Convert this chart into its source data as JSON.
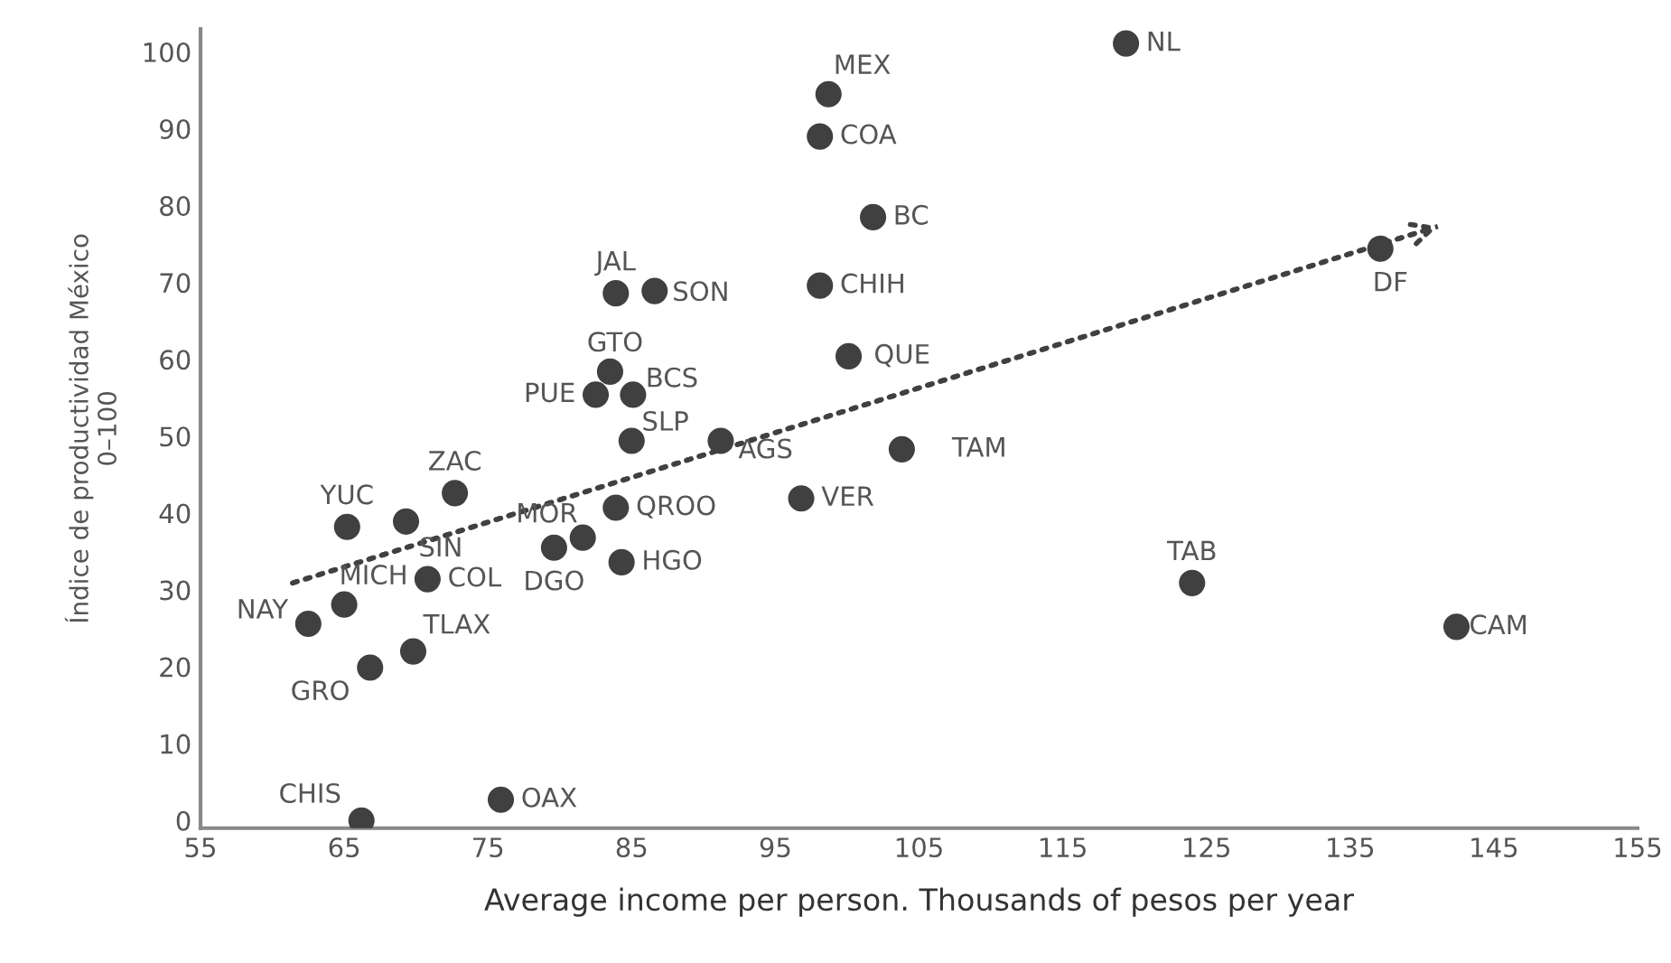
{
  "chart_data": {
    "type": "scatter",
    "xlabel": "Average income per person. Thousands of pesos per year",
    "ylabel": "Índice de productividad México\n0–100",
    "xlim": [
      55,
      155
    ],
    "xticks": [
      55,
      65,
      75,
      85,
      95,
      105,
      115,
      125,
      135,
      145,
      155
    ],
    "ylim": [
      -1,
      103
    ],
    "yticks": [
      0,
      10,
      20,
      30,
      40,
      50,
      60,
      70,
      80,
      90,
      100
    ],
    "grid": false,
    "marker": "circle",
    "series": [
      {
        "color": "#404040",
        "x": [
          66.2,
          75.9,
          62.5,
          66.8,
          69.8,
          65.0,
          70.8,
          65.2,
          69.3,
          72.7,
          79.6,
          81.6,
          83.9,
          84.3,
          85.0,
          82.5,
          83.5,
          85.1,
          83.9,
          86.6,
          91.2,
          96.8,
          103.8,
          100.1,
          98.1,
          101.8,
          98.1,
          98.7,
          119.4,
          137.1,
          124.0,
          142.4
        ],
        "values": [
          0,
          2.7,
          25.6,
          19.9,
          22.0,
          28.1,
          31.4,
          38.2,
          38.9,
          42.6,
          35.5,
          36.8,
          40.7,
          33.6,
          49.4,
          55.4,
          58.4,
          55.4,
          68.6,
          68.9,
          49.4,
          41.9,
          48.3,
          60.4,
          69.6,
          78.5,
          89.0,
          94.5,
          101.1,
          74.4,
          30.9,
          25.2
        ]
      },
      {
        "type": "line",
        "color": "#404040",
        "line_style": "dotted",
        "marker": "none",
        "x": [
          61.4,
          141.1
        ],
        "values": [
          30.9,
          77.3
        ]
      }
    ],
    "annotations": [
      {
        "text": "CHIS",
        "x": 66.2,
        "y": 0
      },
      {
        "text": "OAX",
        "x": 75.9,
        "y": 2.7
      },
      {
        "text": "NAY",
        "x": 62.5,
        "y": 25.6
      },
      {
        "text": "GRO",
        "x": 66.8,
        "y": 19.9
      },
      {
        "text": "TLAX",
        "x": 69.8,
        "y": 22.0
      },
      {
        "text": "MICH",
        "x": 65.0,
        "y": 28.1
      },
      {
        "text": "COL",
        "x": 70.8,
        "y": 31.4
      },
      {
        "text": "YUC",
        "x": 65.2,
        "y": 38.2
      },
      {
        "text": "SIN",
        "x": 69.3,
        "y": 38.9
      },
      {
        "text": "ZAC",
        "x": 72.7,
        "y": 42.6
      },
      {
        "text": "DGO",
        "x": 79.6,
        "y": 35.5
      },
      {
        "text": "MOR",
        "x": 81.6,
        "y": 36.8
      },
      {
        "text": "QROO",
        "x": 83.9,
        "y": 40.7
      },
      {
        "text": "HGO",
        "x": 84.3,
        "y": 33.6
      },
      {
        "text": "SLP",
        "x": 85.0,
        "y": 49.4
      },
      {
        "text": "PUE",
        "x": 82.5,
        "y": 55.4
      },
      {
        "text": "GTO",
        "x": 83.5,
        "y": 58.4
      },
      {
        "text": "BCS",
        "x": 85.1,
        "y": 55.4
      },
      {
        "text": "JAL",
        "x": 83.9,
        "y": 68.6
      },
      {
        "text": "SON",
        "x": 86.6,
        "y": 68.9
      },
      {
        "text": "AGS",
        "x": 91.2,
        "y": 49.4
      },
      {
        "text": "VER",
        "x": 96.8,
        "y": 41.9
      },
      {
        "text": "TAM",
        "x": 103.8,
        "y": 48.3
      },
      {
        "text": "QUE",
        "x": 100.1,
        "y": 60.4
      },
      {
        "text": "CHIH",
        "x": 98.1,
        "y": 69.6
      },
      {
        "text": "BC",
        "x": 101.8,
        "y": 78.5
      },
      {
        "text": "COA",
        "x": 98.1,
        "y": 89.0
      },
      {
        "text": "MEX",
        "x": 98.7,
        "y": 94.5
      },
      {
        "text": "NL",
        "x": 119.4,
        "y": 101.1
      },
      {
        "text": "DF",
        "x": 137.1,
        "y": 74.4
      },
      {
        "text": "TAB",
        "x": 124.0,
        "y": 30.9
      },
      {
        "text": "CAM",
        "x": 142.4,
        "y": 25.2
      }
    ]
  }
}
